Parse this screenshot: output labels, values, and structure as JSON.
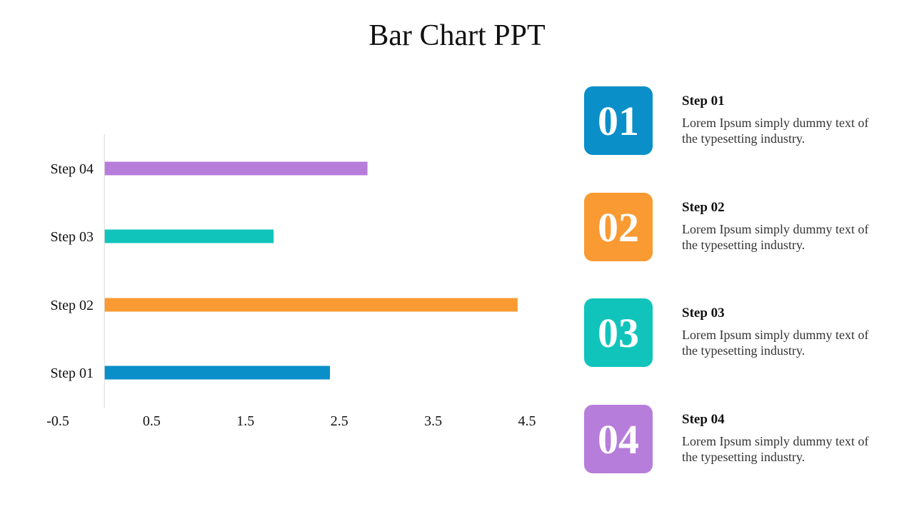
{
  "title": "Bar Chart PPT",
  "chart_data": {
    "type": "bar",
    "orientation": "horizontal",
    "categories": [
      "Step 01",
      "Step 02",
      "Step 03",
      "Step 04"
    ],
    "values": [
      2.4,
      4.4,
      1.8,
      2.8
    ],
    "colors": [
      "#0a8fc9",
      "#f99a32",
      "#10c4bb",
      "#b77ddb"
    ],
    "xlim": [
      -0.5,
      4.5
    ],
    "xticks": [
      "-0.5",
      "0.5",
      "1.5",
      "2.5",
      "3.5",
      "4.5"
    ],
    "tick_values": [
      -0.5,
      0.5,
      1.5,
      2.5,
      3.5,
      4.5
    ],
    "bar_origin": 0,
    "grid": false,
    "xlabel": "",
    "ylabel": ""
  },
  "steps": [
    {
      "number": "01",
      "title": "Step 01",
      "description": "Lorem Ipsum simply dummy text of the typesetting industry.",
      "color": "#0a8fc9"
    },
    {
      "number": "02",
      "title": "Step 02",
      "description": "Lorem Ipsum simply dummy text of the typesetting industry.",
      "color": "#f99a32"
    },
    {
      "number": "03",
      "title": "Step 03",
      "description": "Lorem Ipsum simply dummy text of the typesetting industry.",
      "color": "#10c4bb"
    },
    {
      "number": "04",
      "title": "Step 04",
      "description": "Lorem Ipsum simply dummy text of the typesetting industry.",
      "color": "#b77ddb"
    }
  ]
}
